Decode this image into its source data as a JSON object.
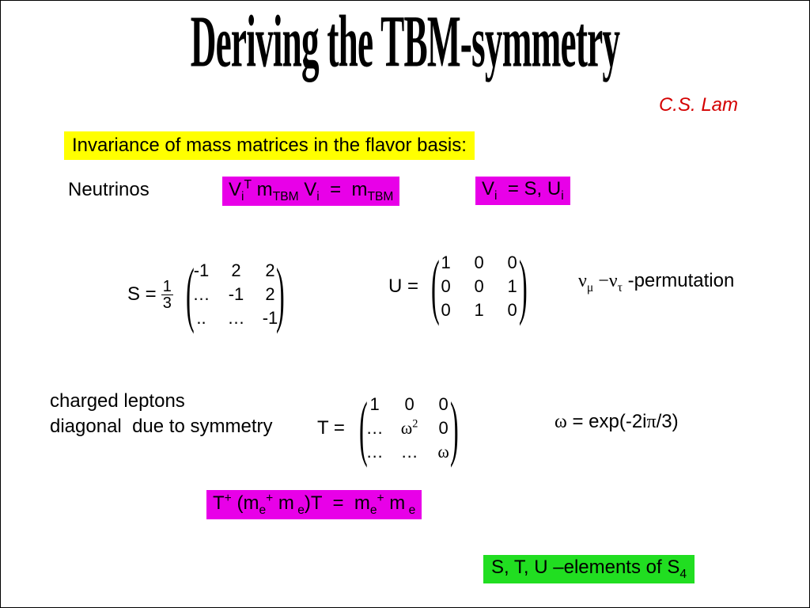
{
  "title": "Deriving the TBM-symmetry",
  "author": "C.S. Lam",
  "invariance_text": "Invariance of mass matrices in the flavor basis:",
  "neutrinos_label": "Neutrinos",
  "eq_vtbm_html": "V<sub>i</sub><sup>T</sup> m<sub>TBM</sub> V<sub>i</sub> &nbsp;=&nbsp; m<sub>TBM</sub>",
  "eq_vi_html": "V<sub>i</sub> &nbsp;= S, U<sub>i</sub>",
  "S_label": "S =",
  "S_frac_num": "1",
  "S_frac_den": "3",
  "S_matrix": [
    "-1",
    "2",
    "2",
    "…",
    "-1",
    "2",
    "..",
    "…",
    "-1"
  ],
  "U_label": "U =",
  "U_matrix": [
    "1",
    "0",
    "0",
    "0",
    "0",
    "1",
    "0",
    "1",
    "0"
  ],
  "perm_html": "<span class='sym'>&nu;<sub>&mu;</sub> &minus;&nu;<sub>&tau;</sub></span> -permutation",
  "charged_line1": "charged leptons",
  "charged_line2": "diagonal &nbsp;due to symmetry",
  "T_label": "T =",
  "T_matrix_html": [
    "1",
    "0",
    "0",
    "…",
    "<span class='sym'>&omega;<sup>2</sup></span>",
    "0",
    "…",
    "…",
    "<span class='sym'>&omega;</span>"
  ],
  "omega_def_html": "<span class='sym'>&omega;</span> = exp(-2i<span class='sym'>&pi;</span>/3)",
  "eq_T_html": "T<sup>+</sup> (m<sub>e</sub><sup>+</sup> m<sub> e</sub>)T &nbsp;=&nbsp; m<sub>e</sub><sup>+</sup> m<sub> e</sub>",
  "footer_html": "S, T, U –elements of S<sub>4</sub>",
  "colors": {
    "yellow": "#ffff00",
    "magenta": "#e800e8",
    "green": "#21de21",
    "author_red": "#d40000",
    "text": "#000000",
    "bg": "#ffffff"
  },
  "fonts": {
    "title_family": "Times New Roman",
    "body_family": "Comic Sans MS",
    "title_size_pt": 42,
    "body_size_pt": 18
  }
}
